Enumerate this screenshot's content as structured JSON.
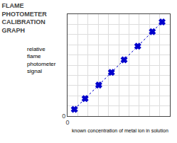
{
  "chart_data": {
    "type": "line",
    "title": "FLAME\nPHOTOMETER\nCALIBRATION\nGRAPH",
    "xlabel": "known concentration of metal ion in solution",
    "ylabel": "relative\nflame\nphotometer\nsignal",
    "x": [
      0.07,
      0.18,
      0.32,
      0.45,
      0.58,
      0.72,
      0.87,
      0.97
    ],
    "values": [
      0.07,
      0.18,
      0.32,
      0.45,
      0.58,
      0.72,
      0.87,
      0.97
    ],
    "color": "#0000cc",
    "marker": "x",
    "line_style": "dotted",
    "xlim": [
      0,
      1.05
    ],
    "ylim": [
      0,
      1.05
    ],
    "xticks": [
      0
    ],
    "yticks": [
      0
    ],
    "grid": true
  }
}
